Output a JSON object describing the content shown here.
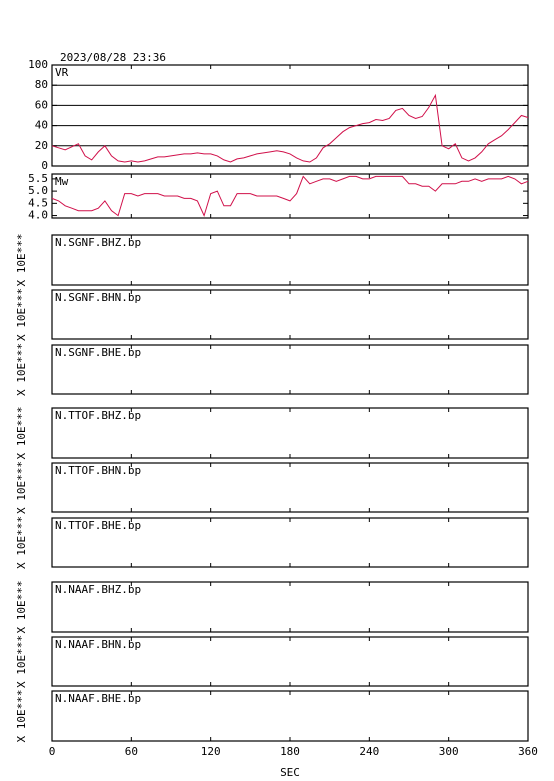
{
  "timestamp": "2023/08/28 23:36",
  "x_axis": {
    "label": "SEC",
    "xlim": [
      0,
      360
    ],
    "xticks": [
      0,
      60,
      120,
      180,
      240,
      300,
      360
    ]
  },
  "chart_data": [
    {
      "type": "line",
      "title": "VR",
      "color": "#d0104a",
      "ylim": [
        0,
        100
      ],
      "yticks": [
        0,
        20,
        40,
        60,
        80,
        100
      ],
      "grid": true,
      "x": [
        0,
        5,
        10,
        15,
        20,
        25,
        30,
        35,
        40,
        45,
        50,
        55,
        60,
        65,
        70,
        75,
        80,
        85,
        90,
        95,
        100,
        105,
        110,
        115,
        120,
        125,
        130,
        135,
        140,
        145,
        150,
        155,
        160,
        165,
        170,
        175,
        180,
        185,
        190,
        195,
        200,
        205,
        210,
        215,
        220,
        225,
        230,
        235,
        240,
        245,
        250,
        255,
        260,
        265,
        270,
        275,
        280,
        285,
        290,
        295,
        300,
        305,
        310,
        315,
        320,
        325,
        330,
        335,
        340,
        345,
        350,
        355,
        360
      ],
      "values": [
        20,
        18,
        16,
        19,
        22,
        10,
        6,
        14,
        20,
        10,
        5,
        4,
        5,
        4,
        5,
        7,
        9,
        9,
        10,
        11,
        12,
        12,
        13,
        12,
        12,
        10,
        6,
        4,
        7,
        8,
        10,
        12,
        13,
        14,
        15,
        14,
        12,
        8,
        5,
        4,
        8,
        18,
        22,
        28,
        34,
        38,
        40,
        42,
        43,
        46,
        45,
        47,
        55,
        57,
        50,
        47,
        49,
        58,
        70,
        20,
        17,
        22,
        8,
        5,
        8,
        14,
        22,
        26,
        30,
        36,
        43,
        50,
        48
      ]
    },
    {
      "type": "line",
      "title": "Mw",
      "color": "#d0104a",
      "ylim": [
        3.9,
        5.7
      ],
      "yticks": [
        {
          "value": 4.0,
          "label": "4.0"
        },
        4.5,
        {
          "value": 5.0,
          "label": "5.0"
        },
        5.5
      ],
      "grid": false,
      "x": [
        0,
        5,
        10,
        15,
        20,
        25,
        30,
        35,
        40,
        45,
        50,
        55,
        60,
        65,
        70,
        75,
        80,
        85,
        90,
        95,
        100,
        105,
        110,
        115,
        120,
        125,
        130,
        135,
        140,
        145,
        150,
        155,
        160,
        165,
        170,
        175,
        180,
        185,
        190,
        195,
        200,
        205,
        210,
        215,
        220,
        225,
        230,
        235,
        240,
        245,
        250,
        255,
        260,
        265,
        270,
        275,
        280,
        285,
        290,
        295,
        300,
        305,
        310,
        315,
        320,
        325,
        330,
        335,
        340,
        345,
        350,
        355,
        360
      ],
      "values": [
        4.7,
        4.6,
        4.4,
        4.3,
        4.2,
        4.2,
        4.2,
        4.3,
        4.6,
        4.2,
        4.0,
        4.9,
        4.9,
        4.8,
        4.9,
        4.9,
        4.9,
        4.8,
        4.8,
        4.8,
        4.7,
        4.7,
        4.6,
        4.0,
        4.9,
        5.0,
        4.4,
        4.4,
        4.9,
        4.9,
        4.9,
        4.8,
        4.8,
        4.8,
        4.8,
        4.7,
        4.6,
        4.9,
        5.6,
        5.3,
        5.4,
        5.5,
        5.5,
        5.4,
        5.5,
        5.6,
        5.6,
        5.5,
        5.5,
        5.6,
        5.6,
        5.6,
        5.6,
        5.6,
        5.3,
        5.3,
        5.2,
        5.2,
        5.0,
        5.3,
        5.3,
        5.3,
        5.4,
        5.4,
        5.5,
        5.4,
        5.5,
        5.5,
        5.5,
        5.6,
        5.5,
        5.3,
        5.4
      ]
    },
    {
      "type": "trace",
      "title": "N.SGNF.BHZ.bp",
      "ylabel": "X 10E***"
    },
    {
      "type": "trace",
      "title": "N.SGNF.BHN.bp",
      "ylabel": "X 10E***"
    },
    {
      "type": "trace",
      "title": "N.SGNF.BHE.bp",
      "ylabel": "X 10E***"
    },
    {
      "type": "trace",
      "title": "N.TTOF.BHZ.bp",
      "ylabel": "X 10E***"
    },
    {
      "type": "trace",
      "title": "N.TTOF.BHN.bp",
      "ylabel": "X 10E***"
    },
    {
      "type": "trace",
      "title": "N.TTOF.BHE.bp",
      "ylabel": "X 10E***"
    },
    {
      "type": "trace",
      "title": "N.NAAF.BHZ.bp",
      "ylabel": "X 10E***"
    },
    {
      "type": "trace",
      "title": "N.NAAF.BHN.bp",
      "ylabel": "X 10E***"
    },
    {
      "type": "trace",
      "title": "N.NAAF.BHE.bp",
      "ylabel": "X 10E***"
    }
  ]
}
